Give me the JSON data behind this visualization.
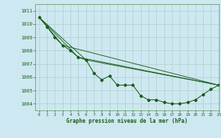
{
  "title": "Graphe pression niveau de la mer (hPa)",
  "bg_color": "#cde8f0",
  "grid_color": "#b0cccc",
  "line_color": "#1a5c1a",
  "marker_color": "#1a5c1a",
  "xlim": [
    -0.5,
    23
  ],
  "ylim": [
    1003.5,
    1011.5
  ],
  "yticks": [
    1004,
    1005,
    1006,
    1007,
    1008,
    1009,
    1010,
    1011
  ],
  "xticks": [
    0,
    1,
    2,
    3,
    4,
    5,
    6,
    7,
    8,
    9,
    10,
    11,
    12,
    13,
    14,
    15,
    16,
    17,
    18,
    19,
    20,
    21,
    22,
    23
  ],
  "series": [
    {
      "x": [
        0,
        1,
        2,
        3,
        4,
        5,
        6,
        7,
        8,
        9,
        10,
        11,
        12,
        13,
        14,
        15,
        16,
        17,
        18,
        19,
        20,
        21,
        22,
        23
      ],
      "y": [
        1010.5,
        1009.8,
        1009.0,
        1008.4,
        1008.0,
        1007.5,
        1007.3,
        1006.3,
        1005.8,
        1006.1,
        1005.4,
        1005.4,
        1005.4,
        1004.6,
        1004.3,
        1004.3,
        1004.1,
        1004.0,
        1004.0,
        1004.1,
        1004.3,
        1004.7,
        1005.1,
        1005.4
      ],
      "markers": true
    },
    {
      "x": [
        0,
        6,
        23
      ],
      "y": [
        1010.5,
        1007.3,
        1005.4
      ],
      "markers": false
    },
    {
      "x": [
        0,
        5,
        23
      ],
      "y": [
        1010.5,
        1007.5,
        1005.4
      ],
      "markers": false
    },
    {
      "x": [
        0,
        3,
        23
      ],
      "y": [
        1010.5,
        1008.4,
        1005.4
      ],
      "markers": false
    }
  ]
}
